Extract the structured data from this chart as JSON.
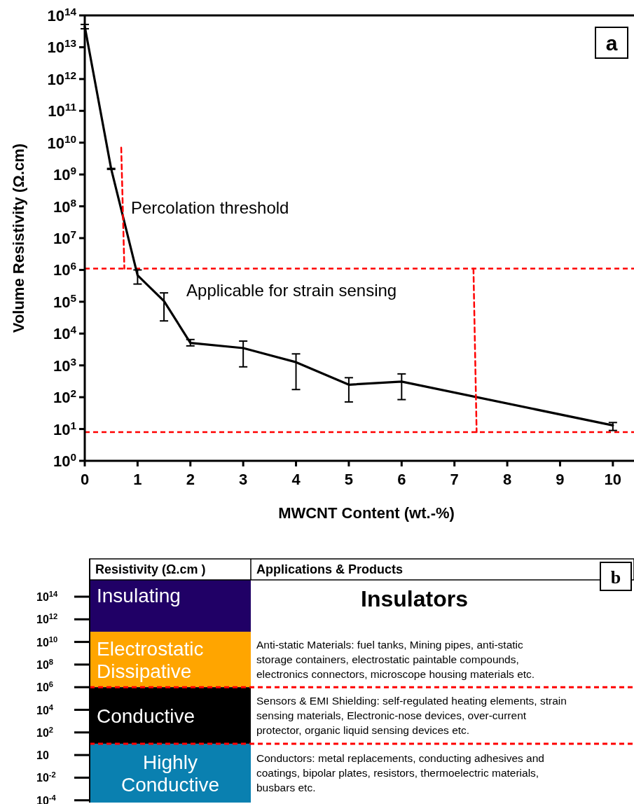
{
  "chart_data": [
    {
      "type": "line",
      "xlabel": "MWCNT Content (wt.-%)",
      "ylabel": "Volume Resistivity (Ω.cm)",
      "log": "y",
      "xlim": [
        0,
        10.4
      ],
      "xticks": [
        0,
        1,
        2,
        3,
        4,
        5,
        6,
        7,
        8,
        9,
        10
      ],
      "ylim": [
        1,
        100000000000000
      ],
      "yticks": [
        {
          "value": 1,
          "label": "10$^{0}$"
        },
        {
          "value": 10,
          "label": "10$^{1}$"
        },
        {
          "value": 100,
          "label": "10$^{2}$"
        },
        {
          "value": 1000,
          "label": "10$^{3}$"
        },
        {
          "value": 10000,
          "label": "10$^{4}$"
        },
        {
          "value": 100000,
          "label": "10$^{5}$"
        },
        {
          "value": 1000000,
          "label": "10$^{6}$"
        },
        {
          "value": 10000000,
          "label": "10$^{7}$"
        },
        {
          "value": 100000000,
          "label": "10$^{8}$"
        },
        {
          "value": 1000000000,
          "label": "10$^{9}$"
        },
        {
          "value": 10000000000,
          "label": "10$^{10}$"
        },
        {
          "value": 100000000000,
          "label": "10$^{11}$"
        },
        {
          "value": 1000000000000,
          "label": "10$^{12}$"
        },
        {
          "value": 10000000000000,
          "label": "10$^{13}$"
        },
        {
          "value": 100000000000000,
          "label": "10$^{14}$"
        }
      ],
      "x": [
        0,
        0.5,
        1,
        1.5,
        2,
        3,
        4,
        5,
        6,
        10
      ],
      "series": [
        {
          "color": "#000000",
          "values": [
            45000000000000,
            1500000000,
            680000,
            105000,
            5100,
            3500,
            1260,
            247,
            309,
            13
          ],
          "errors": [
            [
              38000000000000,
              52000000000000
            ],
            [
              1450000000,
              1550000000
            ],
            [
              360000,
              1000000
            ],
            [
              25000,
              190000
            ],
            [
              4100,
              6500
            ],
            [
              900,
              5800
            ],
            [
              174,
              2300
            ],
            [
              71,
              410
            ],
            [
              84,
              540
            ],
            [
              9,
              16
            ]
          ]
        },
        {
          "type": "line",
          "x": [
            0.69,
            0.75
          ],
          "values": [
            7000000000,
            1100000
          ],
          "color": "#ff0000",
          "line_style": "dashed"
        },
        {
          "type": "line",
          "x": [
            7.36,
            7.42
          ],
          "values": [
            1100000,
            8
          ],
          "color": "#ff0000",
          "line_style": "dashed"
        }
      ],
      "ref_lines": [
        {
          "axis": "y",
          "value": 1100000,
          "color": "#ff0000",
          "line_style": "dashed"
        },
        {
          "axis": "y",
          "value": 8,
          "color": "#ff0000",
          "line_style": "dashed"
        }
      ],
      "annotations": [
        "a",
        "Percolation threshold",
        "Applicable for strain sensing"
      ]
    },
    {
      "type": "other",
      "annotations": [
        "b",
        "Resistivity (Ω.cm )",
        "Applications & Products",
        "10$^{14}$",
        "10$^{12}$",
        "10$^{10}$",
        "10$^{8}$",
        "10$^{6}$",
        "10$^{4}$",
        "10$^{2}$",
        "10",
        "10$^{-2}$",
        "10$^{-4}$",
        "Insulating",
        "Electrostatic Dissipative",
        "Conductive",
        "Highly Conductive",
        "Insulators",
        "Anti-static Materials: fuel tanks, Mining pipes, anti-static storage containers, electrostatic paintable compounds, electronics connectors, microscope housing materials etc.",
        "Sensors & EMI Shielding: self-regulated heating elements, strain sensing materials, Electronic-nose devices, over-current protector, organic liquid sensing devices etc.",
        "Conductors: metal replacements, conducting adhesives and coatings, bipolar plates, resistors, thermoelectric materials, busbars etc."
      ]
    }
  ]
}
